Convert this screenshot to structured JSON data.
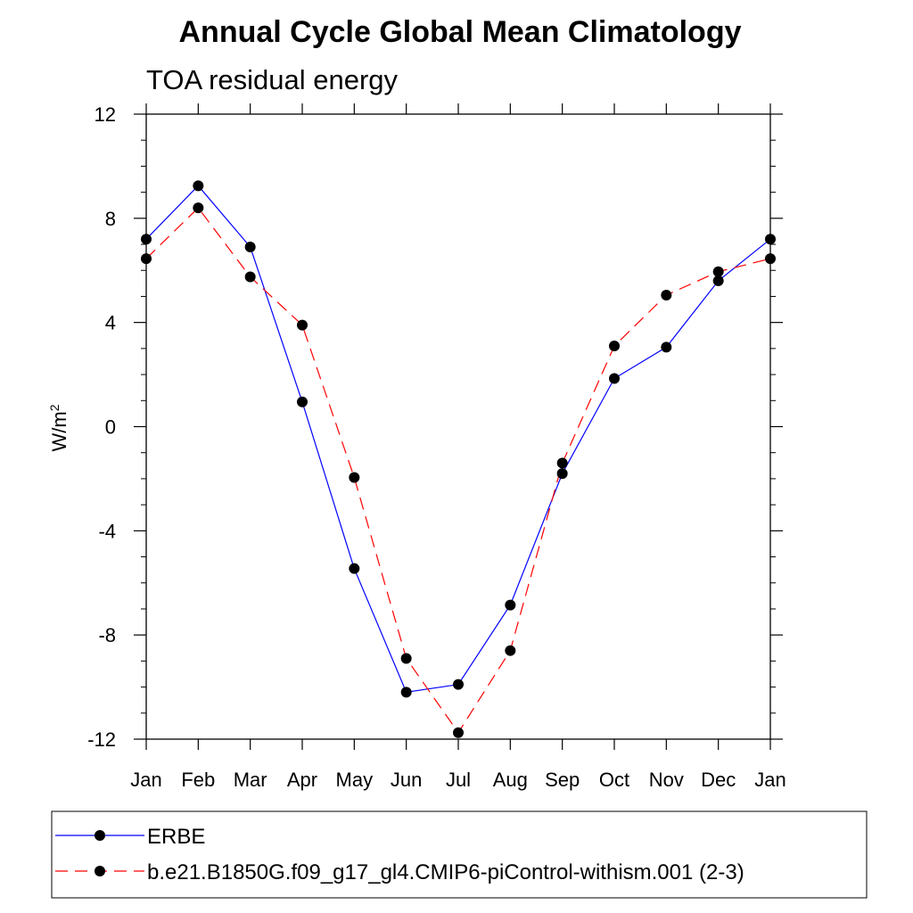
{
  "chart_data": {
    "type": "line",
    "title": "Annual Cycle Global Mean Climatology",
    "subtitle": "TOA residual energy",
    "xlabel": "",
    "ylabel": {
      "base": "W/m",
      "superscript": "2"
    },
    "categories": [
      "Jan",
      "Feb",
      "Mar",
      "Apr",
      "May",
      "Jun",
      "Jul",
      "Aug",
      "Sep",
      "Oct",
      "Nov",
      "Dec",
      "Jan"
    ],
    "ylim": [
      -12,
      12
    ],
    "yticks": [
      12,
      8,
      4,
      0,
      -4,
      -8,
      -12
    ],
    "ytick_labels": [
      "12",
      "8",
      "4",
      "0",
      "-4",
      "-8",
      "-12"
    ],
    "grid": false,
    "legend_position": "bottom",
    "series": [
      {
        "name": "ERBE",
        "color": "#0000ff",
        "line_style": "solid",
        "values": [
          7.2,
          9.25,
          6.9,
          0.95,
          -5.45,
          -10.2,
          -9.9,
          -6.85,
          -1.8,
          1.85,
          3.05,
          5.6,
          7.2
        ]
      },
      {
        "name": "b.e21.B1850G.f09_g17_gl4.CMIP6-piControl-withism.001 (2-3)",
        "color": "#ff0000",
        "line_style": "dashed",
        "values": [
          6.45,
          8.4,
          5.75,
          3.9,
          -1.95,
          -8.9,
          -11.75,
          -8.6,
          -1.4,
          3.1,
          5.05,
          5.95,
          6.45
        ]
      }
    ]
  }
}
